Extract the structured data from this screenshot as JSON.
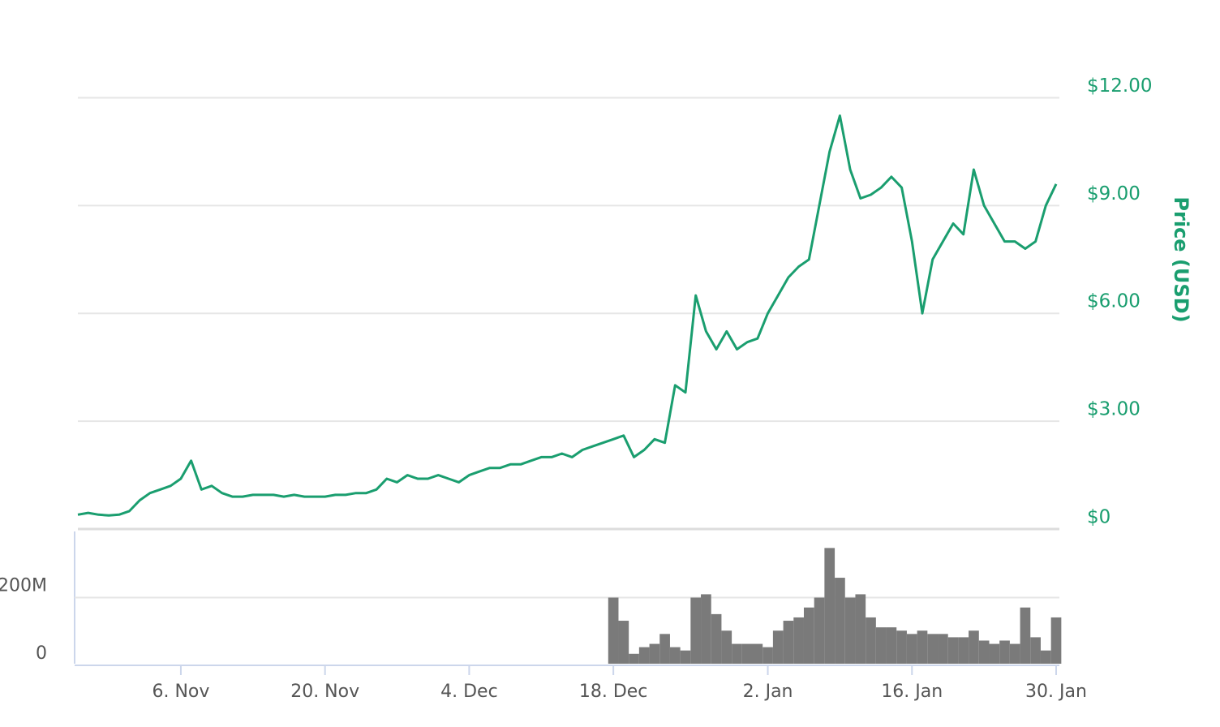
{
  "chart_data": {
    "type": "line",
    "ylabel": "Price (USD)",
    "categories": [
      null,
      null,
      null,
      null,
      null,
      null,
      null,
      null,
      null,
      null,
      "6. Nov",
      null,
      null,
      null,
      null,
      null,
      null,
      null,
      null,
      null,
      null,
      null,
      null,
      null,
      "20. Nov",
      null,
      null,
      null,
      null,
      null,
      null,
      null,
      null,
      null,
      null,
      null,
      null,
      null,
      "4. Dec",
      null,
      null,
      null,
      null,
      null,
      null,
      null,
      null,
      null,
      null,
      null,
      null,
      null,
      "18. Dec",
      null,
      null,
      null,
      null,
      null,
      null,
      null,
      null,
      null,
      null,
      null,
      null,
      null,
      null,
      "2. Jan",
      null,
      null,
      null,
      null,
      null,
      null,
      null,
      null,
      null,
      null,
      null,
      null,
      null,
      "16. Jan",
      null,
      null,
      null,
      null,
      null,
      null,
      null,
      null,
      null,
      null,
      null,
      null,
      null,
      "30. Jan"
    ],
    "series": [
      {
        "color": "#1a9e6f",
        "values": [
          0.4,
          0.45,
          0.4,
          0.38,
          0.4,
          0.5,
          0.8,
          1.0,
          1.1,
          1.2,
          1.4,
          1.9,
          1.1,
          1.2,
          1.0,
          0.9,
          0.9,
          0.95,
          0.95,
          0.95,
          0.9,
          0.95,
          0.9,
          0.9,
          0.9,
          0.95,
          0.95,
          1.0,
          1.0,
          1.1,
          1.4,
          1.3,
          1.5,
          1.4,
          1.4,
          1.5,
          1.4,
          1.3,
          1.5,
          1.6,
          1.7,
          1.7,
          1.8,
          1.8,
          1.9,
          2.0,
          2.0,
          2.1,
          2.0,
          2.2,
          2.3,
          2.4,
          2.5,
          2.6,
          2.0,
          2.2,
          2.5,
          2.4,
          4.0,
          3.8,
          6.5,
          5.5,
          5.0,
          5.5,
          5.0,
          5.2,
          5.3,
          6.0,
          6.5,
          7.0,
          7.3,
          7.5,
          9.0,
          10.5,
          11.5,
          10.0,
          9.2,
          9.3,
          9.5,
          9.8,
          9.5,
          8.0,
          6.0,
          7.5,
          8.0,
          8.5,
          8.2,
          10.0,
          9.0,
          8.5,
          8.0,
          8.0,
          7.8,
          8.0,
          9.0,
          9.6
        ]
      },
      {
        "color": "#7a7a7a",
        "axis": "y2",
        "values": [
          null,
          null,
          null,
          null,
          null,
          null,
          null,
          null,
          null,
          null,
          null,
          null,
          null,
          null,
          null,
          null,
          null,
          null,
          null,
          null,
          null,
          null,
          null,
          null,
          null,
          null,
          null,
          null,
          null,
          null,
          null,
          null,
          null,
          null,
          null,
          null,
          null,
          null,
          null,
          null,
          null,
          null,
          null,
          null,
          null,
          null,
          null,
          null,
          null,
          null,
          null,
          null,
          200000000,
          130000000,
          30000000,
          50000000,
          60000000,
          90000000,
          50000000,
          40000000,
          200000000,
          210000000,
          150000000,
          100000000,
          60000000,
          60000000,
          60000000,
          50000000,
          100000000,
          130000000,
          140000000,
          170000000,
          200000000,
          350000000,
          260000000,
          200000000,
          210000000,
          140000000,
          110000000,
          110000000,
          100000000,
          90000000,
          100000000,
          90000000,
          90000000,
          80000000,
          80000000,
          100000000,
          70000000,
          60000000,
          70000000,
          60000000,
          170000000,
          80000000,
          40000000,
          140000000
        ]
      }
    ],
    "ylim": [
      0,
      13.5
    ],
    "yticks": [
      {
        "value": 0,
        "label": "$0"
      },
      {
        "value": 3,
        "label": "$3.00"
      },
      {
        "value": 6,
        "label": "$6.00"
      },
      {
        "value": 9,
        "label": "$9.00"
      },
      {
        "value": 12,
        "label": "$12.00"
      }
    ],
    "y2lim": [
      0,
      400000000
    ],
    "y2ticks": [
      0,
      {
        "value": 200000000,
        "label": "200M"
      }
    ],
    "grid": true
  }
}
